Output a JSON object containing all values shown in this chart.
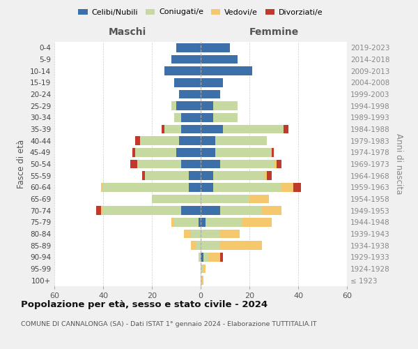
{
  "age_groups": [
    "100+",
    "95-99",
    "90-94",
    "85-89",
    "80-84",
    "75-79",
    "70-74",
    "65-69",
    "60-64",
    "55-59",
    "50-54",
    "45-49",
    "40-44",
    "35-39",
    "30-34",
    "25-29",
    "20-24",
    "15-19",
    "10-14",
    "5-9",
    "0-4"
  ],
  "birth_years": [
    "≤ 1923",
    "1924-1928",
    "1929-1933",
    "1934-1938",
    "1939-1943",
    "1944-1948",
    "1949-1953",
    "1954-1958",
    "1959-1963",
    "1964-1968",
    "1969-1973",
    "1974-1978",
    "1979-1983",
    "1984-1988",
    "1989-1993",
    "1994-1998",
    "1999-2003",
    "2004-2008",
    "2009-2013",
    "2014-2018",
    "2019-2023"
  ],
  "colors": {
    "celibi": "#3d6fa8",
    "coniugati": "#c5d9a0",
    "vedovi": "#f5c86e",
    "divorziati": "#c0392b"
  },
  "maschi": {
    "celibi": [
      0,
      0,
      0,
      0,
      0,
      1,
      8,
      0,
      5,
      5,
      8,
      10,
      9,
      8,
      8,
      10,
      9,
      11,
      15,
      12,
      10
    ],
    "coniugati": [
      0,
      0,
      1,
      2,
      4,
      10,
      32,
      20,
      35,
      18,
      18,
      17,
      16,
      7,
      3,
      2,
      0,
      0,
      0,
      0,
      0
    ],
    "vedovi": [
      0,
      0,
      0,
      2,
      3,
      1,
      1,
      0,
      1,
      0,
      0,
      0,
      0,
      0,
      0,
      0,
      0,
      0,
      0,
      0,
      0
    ],
    "divorziati": [
      0,
      0,
      0,
      0,
      0,
      0,
      2,
      0,
      0,
      1,
      3,
      1,
      2,
      1,
      0,
      0,
      0,
      0,
      0,
      0,
      0
    ]
  },
  "femmine": {
    "celibi": [
      0,
      0,
      1,
      0,
      0,
      2,
      8,
      0,
      5,
      5,
      8,
      6,
      6,
      9,
      5,
      5,
      8,
      9,
      21,
      15,
      12
    ],
    "coniugati": [
      0,
      1,
      2,
      8,
      8,
      15,
      17,
      20,
      28,
      21,
      22,
      23,
      21,
      25,
      10,
      10,
      0,
      0,
      0,
      0,
      0
    ],
    "vedovi": [
      1,
      1,
      5,
      17,
      8,
      12,
      8,
      8,
      5,
      1,
      1,
      0,
      0,
      0,
      0,
      0,
      0,
      0,
      0,
      0,
      0
    ],
    "divorziati": [
      0,
      0,
      1,
      0,
      0,
      0,
      0,
      0,
      3,
      2,
      2,
      1,
      0,
      2,
      0,
      0,
      0,
      0,
      0,
      0,
      0
    ]
  },
  "title": "Popolazione per età, sesso e stato civile - 2024",
  "subtitle": "COMUNE DI CANNALONGA (SA) - Dati ISTAT 1° gennaio 2024 - Elaborazione TUTTITALIA.IT",
  "xlabel_left": "Maschi",
  "xlabel_right": "Femmine",
  "ylabel_left": "Fasce di età",
  "ylabel_right": "Anni di nascita",
  "xlim": 60,
  "bg_color": "#f0f0f0",
  "plot_bg_color": "#ffffff",
  "grid_color": "#cccccc"
}
